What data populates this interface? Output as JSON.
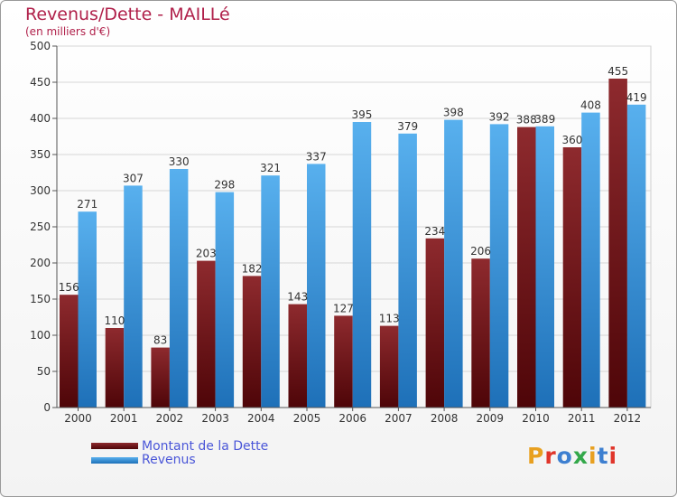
{
  "title": "Revenus/Dette - MAILLé",
  "subtitle": "(en milliers d'€)",
  "logo": {
    "text": "Proxiti",
    "colors": [
      "#e8a020",
      "#e0352a",
      "#3d7fd0",
      "#33a84a",
      "#e8a020",
      "#3d7fd0",
      "#e0352a"
    ]
  },
  "colors": {
    "dette": "#7a1e22",
    "revenus": "#4aa3e6",
    "title": "#b0204a",
    "legend_text": "#4a56d8"
  },
  "chart_data": {
    "type": "bar",
    "categories": [
      "2000",
      "2001",
      "2002",
      "2003",
      "2004",
      "2005",
      "2006",
      "2007",
      "2008",
      "2009",
      "2010",
      "2011",
      "2012"
    ],
    "series": [
      {
        "name": "Montant de la Dette",
        "values": [
          156,
          110,
          83,
          203,
          182,
          143,
          127,
          113,
          234,
          206,
          388,
          360,
          455
        ]
      },
      {
        "name": "Revenus",
        "values": [
          271,
          307,
          330,
          298,
          321,
          337,
          395,
          379,
          398,
          392,
          389,
          408,
          419
        ]
      }
    ],
    "ylim": [
      0,
      500
    ],
    "yticks": [
      0,
      50,
      100,
      150,
      200,
      250,
      300,
      350,
      400,
      450,
      500
    ],
    "grid": true,
    "legend_position": "bottom-left"
  }
}
